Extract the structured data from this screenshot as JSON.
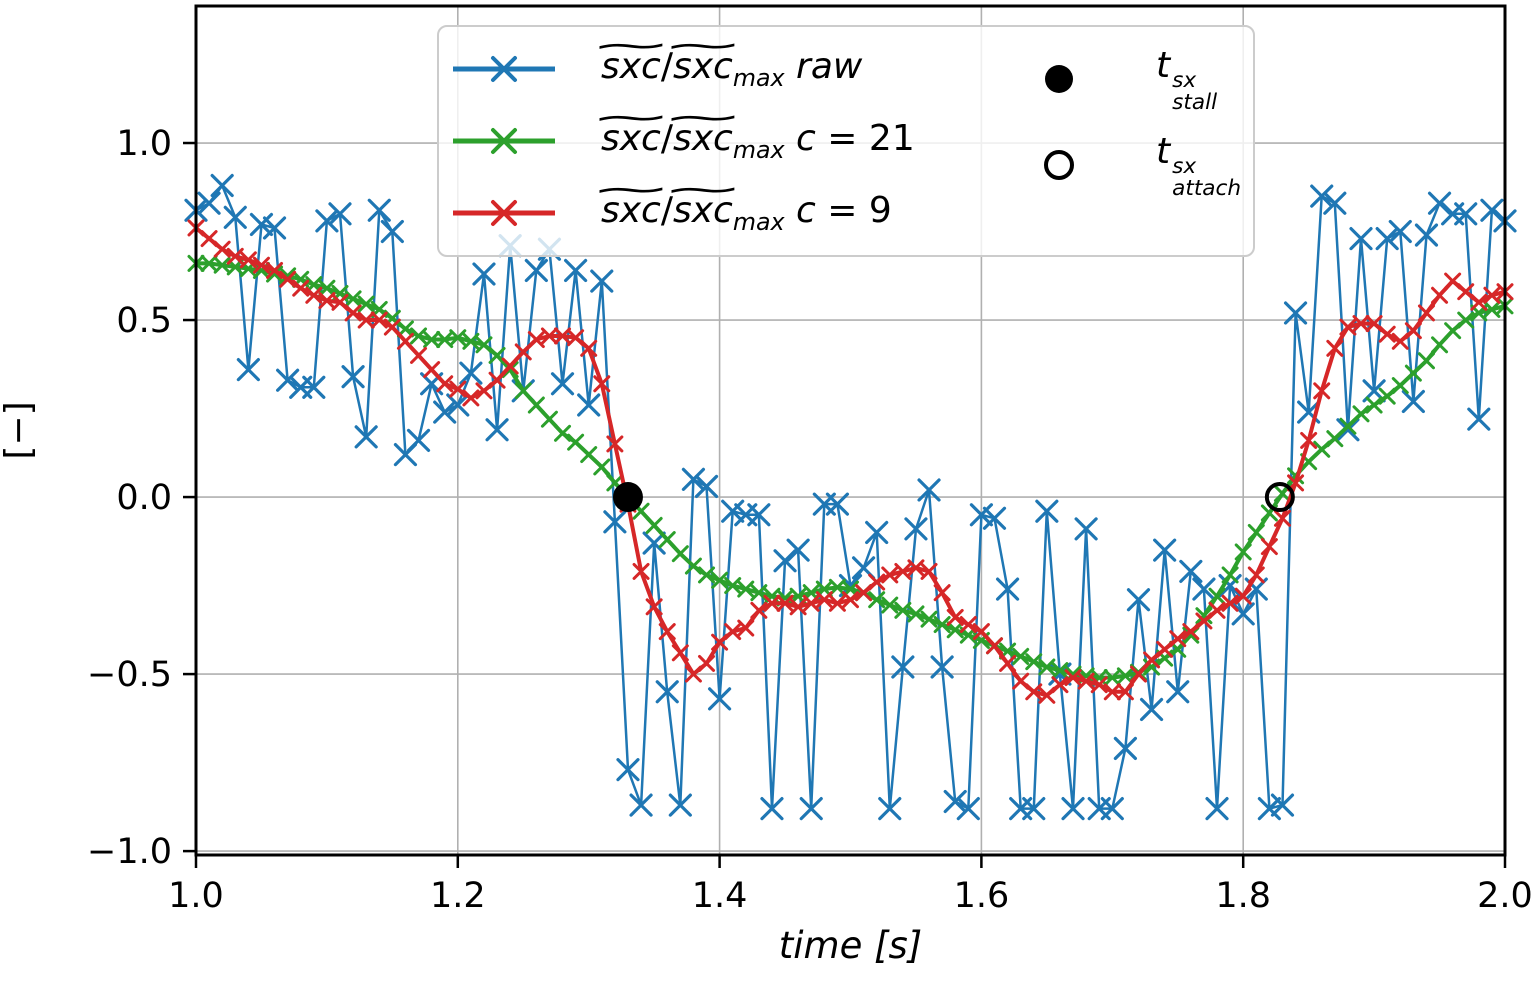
{
  "figure": {
    "background": "#ffffff",
    "grid_color": "#b0b0b0",
    "spine_color": "#000000"
  },
  "axes": {
    "xlabel": "time [s]",
    "ylabel": "[−]",
    "xticks": [
      "1.0",
      "1.2",
      "1.4",
      "1.6",
      "1.8",
      "2.0"
    ],
    "xtick_values": [
      1.0,
      1.2,
      1.4,
      1.6,
      1.8,
      2.0
    ],
    "yticks": [
      "−1.0",
      "−0.5",
      "0.0",
      "0.5",
      "1.0"
    ],
    "ytick_values": [
      -1.0,
      -0.5,
      0.0,
      0.5,
      1.0
    ],
    "xlim": [
      1.0,
      2.0
    ],
    "ylim": [
      -1.011,
      1.387
    ]
  },
  "legend": {
    "entries": [
      {
        "name": "raw",
        "color": "#1f77b4",
        "parts": [
          {
            "text": "sxc",
            "accent": "~",
            "italic": true
          },
          {
            "text": "/"
          },
          {
            "text": "sxc",
            "accent": "~",
            "italic": true
          },
          {
            "text": "max",
            "sub": true
          },
          {
            "text": " raw",
            "italic": true
          }
        ]
      },
      {
        "name": "c21",
        "color": "#2ca02c",
        "parts": [
          {
            "text": "sxc",
            "accent": "~",
            "italic": true
          },
          {
            "text": "/"
          },
          {
            "text": "sxc",
            "accent": "~",
            "italic": true
          },
          {
            "text": "max",
            "sub": true
          },
          {
            "text": " c",
            "italic": true
          },
          {
            "text": " = 21"
          }
        ]
      },
      {
        "name": "c9",
        "color": "#d62728",
        "parts": [
          {
            "text": "sxc",
            "accent": "~",
            "italic": true
          },
          {
            "text": "/"
          },
          {
            "text": "sxc",
            "accent": "~",
            "italic": true
          },
          {
            "text": "max",
            "sub": true
          },
          {
            "text": " c",
            "italic": true
          },
          {
            "text": " = 9"
          }
        ]
      }
    ],
    "markers": [
      {
        "name": "t_stall",
        "style": "filled-circle",
        "parts": [
          {
            "text": "t",
            "italic": true,
            "stack": {
              "sup": "sx",
              "sub": "stall"
            }
          }
        ]
      },
      {
        "name": "t_attach",
        "style": "open-circle",
        "parts": [
          {
            "text": "t",
            "italic": true,
            "stack": {
              "sup": "sx",
              "sub": "attach"
            }
          }
        ]
      }
    ]
  },
  "chart_data": {
    "type": "line",
    "title": "",
    "xlabel": "time [s]",
    "ylabel": "[−]",
    "xlim": [
      1.0,
      2.0
    ],
    "ylim": [
      -1.011,
      1.387
    ],
    "grid": true,
    "legend_position": "upper center, 2 columns",
    "x": [
      1.0,
      1.01,
      1.02,
      1.03,
      1.04,
      1.05,
      1.06,
      1.07,
      1.08,
      1.09,
      1.1,
      1.11,
      1.12,
      1.13,
      1.14,
      1.15,
      1.16,
      1.17,
      1.18,
      1.19,
      1.2,
      1.21,
      1.22,
      1.23,
      1.24,
      1.25,
      1.26,
      1.27,
      1.28,
      1.29,
      1.3,
      1.31,
      1.32,
      1.33,
      1.34,
      1.35,
      1.36,
      1.37,
      1.38,
      1.39,
      1.4,
      1.41,
      1.42,
      1.43,
      1.44,
      1.45,
      1.46,
      1.47,
      1.48,
      1.49,
      1.5,
      1.51,
      1.52,
      1.53,
      1.54,
      1.55,
      1.56,
      1.57,
      1.58,
      1.59,
      1.6,
      1.61,
      1.62,
      1.63,
      1.64,
      1.65,
      1.66,
      1.67,
      1.68,
      1.69,
      1.7,
      1.71,
      1.72,
      1.73,
      1.74,
      1.75,
      1.76,
      1.77,
      1.78,
      1.79,
      1.8,
      1.81,
      1.82,
      1.83,
      1.84,
      1.85,
      1.86,
      1.87,
      1.88,
      1.89,
      1.9,
      1.91,
      1.92,
      1.93,
      1.94,
      1.95,
      1.96,
      1.97,
      1.98,
      1.99,
      2.0
    ],
    "series": [
      {
        "name": "sxc/sxc_max raw",
        "color": "#1f77b4",
        "marker": "x",
        "marker_size": 10,
        "line_width": 2.5,
        "values": [
          0.81,
          0.83,
          0.88,
          0.79,
          0.36,
          0.77,
          0.76,
          0.33,
          0.31,
          0.31,
          0.78,
          0.8,
          0.34,
          0.17,
          0.81,
          0.75,
          0.12,
          0.16,
          0.32,
          0.24,
          0.26,
          0.35,
          0.63,
          0.19,
          0.71,
          0.3,
          0.64,
          0.7,
          0.32,
          0.64,
          0.26,
          0.61,
          -0.07,
          -0.77,
          -0.87,
          -0.13,
          -0.55,
          -0.87,
          0.05,
          0.03,
          -0.57,
          -0.04,
          -0.05,
          -0.05,
          -0.88,
          -0.18,
          -0.15,
          -0.88,
          -0.02,
          -0.02,
          -0.25,
          -0.2,
          -0.1,
          -0.88,
          -0.48,
          -0.09,
          0.02,
          -0.48,
          -0.86,
          -0.88,
          -0.05,
          -0.06,
          -0.26,
          -0.88,
          -0.88,
          -0.04,
          -0.5,
          -0.88,
          -0.09,
          -0.88,
          -0.88,
          -0.71,
          -0.29,
          -0.6,
          -0.15,
          -0.55,
          -0.21,
          -0.26,
          -0.88,
          -0.25,
          -0.33,
          -0.26,
          -0.88,
          -0.87,
          0.52,
          0.24,
          0.85,
          0.83,
          0.19,
          0.73,
          0.3,
          0.73,
          0.75,
          0.27,
          0.74,
          0.83,
          0.8,
          0.8,
          0.22,
          0.81,
          0.78
        ]
      },
      {
        "name": "sxc/sxc_max c = 21",
        "color": "#2ca02c",
        "marker": "x",
        "marker_size": 7,
        "line_width": 4,
        "values": [
          0.66,
          0.66,
          0.655,
          0.65,
          0.645,
          0.64,
          0.63,
          0.625,
          0.615,
          0.6,
          0.59,
          0.575,
          0.56,
          0.545,
          0.53,
          0.505,
          0.475,
          0.455,
          0.445,
          0.445,
          0.45,
          0.44,
          0.43,
          0.4,
          0.36,
          0.3,
          0.26,
          0.22,
          0.18,
          0.155,
          0.12,
          0.085,
          0.04,
          0.0,
          -0.04,
          -0.08,
          -0.12,
          -0.16,
          -0.195,
          -0.22,
          -0.235,
          -0.25,
          -0.26,
          -0.27,
          -0.28,
          -0.285,
          -0.28,
          -0.27,
          -0.26,
          -0.255,
          -0.26,
          -0.27,
          -0.29,
          -0.305,
          -0.32,
          -0.33,
          -0.345,
          -0.36,
          -0.375,
          -0.39,
          -0.405,
          -0.42,
          -0.435,
          -0.45,
          -0.465,
          -0.48,
          -0.49,
          -0.5,
          -0.505,
          -0.51,
          -0.51,
          -0.505,
          -0.495,
          -0.48,
          -0.455,
          -0.43,
          -0.39,
          -0.335,
          -0.28,
          -0.22,
          -0.155,
          -0.1,
          -0.045,
          0.01,
          0.06,
          0.1,
          0.135,
          0.165,
          0.2,
          0.235,
          0.26,
          0.285,
          0.315,
          0.35,
          0.385,
          0.43,
          0.47,
          0.5,
          0.52,
          0.53,
          0.54
        ]
      },
      {
        "name": "sxc/sxc_max c = 9",
        "color": "#d62728",
        "marker": "x",
        "marker_size": 7,
        "line_width": 4,
        "values": [
          0.76,
          0.73,
          0.7,
          0.68,
          0.67,
          0.655,
          0.64,
          0.615,
          0.59,
          0.57,
          0.555,
          0.55,
          0.52,
          0.5,
          0.5,
          0.48,
          0.44,
          0.4,
          0.36,
          0.32,
          0.305,
          0.28,
          0.3,
          0.33,
          0.37,
          0.41,
          0.445,
          0.455,
          0.455,
          0.45,
          0.42,
          0.32,
          0.15,
          -0.02,
          -0.21,
          -0.31,
          -0.38,
          -0.44,
          -0.5,
          -0.47,
          -0.41,
          -0.38,
          -0.37,
          -0.32,
          -0.3,
          -0.3,
          -0.31,
          -0.3,
          -0.29,
          -0.3,
          -0.29,
          -0.27,
          -0.24,
          -0.22,
          -0.21,
          -0.2,
          -0.21,
          -0.27,
          -0.34,
          -0.36,
          -0.38,
          -0.42,
          -0.47,
          -0.52,
          -0.55,
          -0.56,
          -0.53,
          -0.51,
          -0.52,
          -0.53,
          -0.55,
          -0.55,
          -0.5,
          -0.46,
          -0.43,
          -0.4,
          -0.38,
          -0.35,
          -0.32,
          -0.3,
          -0.28,
          -0.22,
          -0.14,
          -0.06,
          0.04,
          0.16,
          0.3,
          0.42,
          0.48,
          0.49,
          0.49,
          0.46,
          0.44,
          0.47,
          0.52,
          0.57,
          0.61,
          0.58,
          0.55,
          0.57,
          0.58
        ]
      }
    ],
    "annotations": [
      {
        "name": "t_stall",
        "x": 1.33,
        "y": 0.0,
        "marker": "filled-circle",
        "color": "#000000",
        "size": 15
      },
      {
        "name": "t_attach",
        "x": 1.828,
        "y": 0.0,
        "marker": "open-circle",
        "color": "#000000",
        "size": 13
      }
    ]
  }
}
